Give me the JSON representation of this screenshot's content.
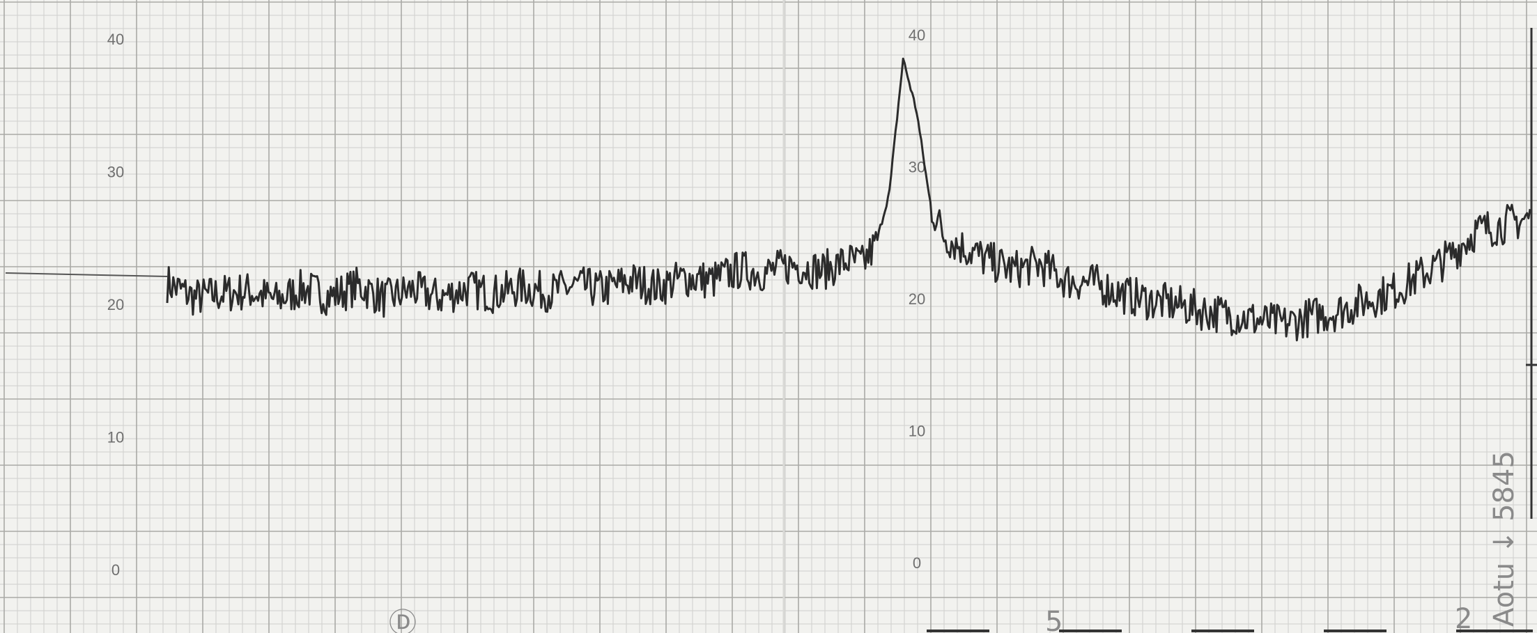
{
  "chart_data": {
    "type": "line",
    "title": "",
    "xlabel": "",
    "ylabel": "",
    "ylim": [
      0,
      40
    ],
    "grid": true,
    "axes": [
      {
        "name": "left-scale",
        "ticks": [
          "40",
          "30",
          "20",
          "10",
          "0"
        ],
        "tick_values": [
          40,
          30,
          20,
          10,
          0
        ]
      },
      {
        "name": "middle-scale",
        "ticks": [
          "40",
          "30",
          "20",
          "10",
          "0"
        ],
        "tick_values": [
          40,
          30,
          20,
          10,
          0
        ]
      }
    ],
    "baseline_value": 22,
    "series": [
      {
        "x": [
          0,
          2,
          4,
          6,
          8,
          10,
          12,
          14,
          16,
          18,
          20,
          22,
          24,
          26,
          28,
          30,
          32,
          34,
          36,
          38,
          40,
          42,
          44,
          46,
          48,
          50,
          51,
          52,
          53,
          54,
          55,
          56,
          57,
          58,
          59,
          60,
          62,
          64,
          66,
          68,
          70,
          72,
          74,
          76,
          78,
          80,
          82,
          84,
          86,
          88,
          90,
          92,
          94,
          96,
          98,
          100
        ],
        "values": [
          21.6,
          20.5,
          20.8,
          21.0,
          20.3,
          21.2,
          20.6,
          21.4,
          20.4,
          21.1,
          20.5,
          21.2,
          20.8,
          21.3,
          20.9,
          21.4,
          21.1,
          21.8,
          21.3,
          22.0,
          21.8,
          22.6,
          22.4,
          23.0,
          22.5,
          23.3,
          23.0,
          24.5,
          28.5,
          38.5,
          34.5,
          27.5,
          25.2,
          24.5,
          24.0,
          23.4,
          22.6,
          23.0,
          21.8,
          21.6,
          20.8,
          20.3,
          20.0,
          19.5,
          19.2,
          18.8,
          18.5,
          19.1,
          19.5,
          20.3,
          21.0,
          22.2,
          23.5,
          25.5,
          26.0,
          26.5
        ]
      }
    ]
  },
  "annotations": {
    "scrawl_left": "Ⓓ",
    "scrawl_bottom_mid": "5",
    "scrawl_bottom_right": "2",
    "scrawl_vertical": "Aotu ↓ 5845"
  }
}
